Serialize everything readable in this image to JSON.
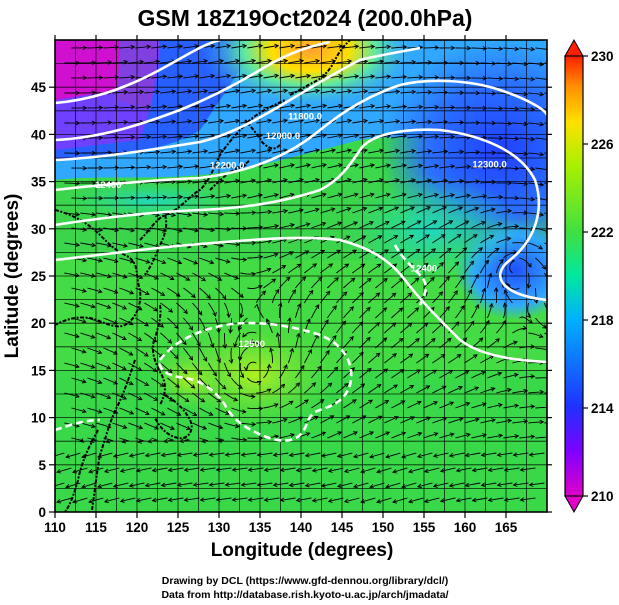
{
  "title": "GSM 18Z19Oct2024 (200.0hPa)",
  "xlabel": "Longitude (degrees)",
  "ylabel": "Latitude  (degrees)",
  "credits": [
    "Drawing by DCL (https://www.gfd-dennou.org/library/dcl/)",
    "Data from http://database.rish.kyoto-u.ac.jp/arch/jmadata/"
  ],
  "map": {
    "lon_range": [
      110,
      170
    ],
    "lat_range": [
      0,
      50
    ],
    "lon_ticks": [
      110,
      115,
      120,
      125,
      130,
      135,
      140,
      145,
      150,
      155,
      160,
      165
    ],
    "lat_ticks": [
      0,
      5,
      10,
      15,
      20,
      25,
      30,
      35,
      40,
      45
    ],
    "grid": true,
    "field": "temperature (shaded)",
    "overlays": [
      "geopotential height contours",
      "wind streamlines",
      "coastlines"
    ]
  },
  "colorbar": {
    "min": 210,
    "max": 230,
    "labels": [
      "210",
      "214",
      "218",
      "222",
      "226",
      "230"
    ],
    "colors": [
      "#e000c8",
      "#8000ff",
      "#2030ff",
      "#00b0ff",
      "#00e8a0",
      "#40e040",
      "#a8f000",
      "#ffe000",
      "#ff9000",
      "#ff2000"
    ]
  },
  "contour_labels": [
    {
      "text": "11800.0",
      "lon": 140.5,
      "lat": 41.6
    },
    {
      "text": "12000.0",
      "lon": 137.8,
      "lat": 39.5
    },
    {
      "text": "12200.0",
      "lon": 131,
      "lat": 36.4
    },
    {
      "text": "12400",
      "lon": 116.5,
      "lat": 34.3
    },
    {
      "text": "12300.0",
      "lon": 163,
      "lat": 36.5
    },
    {
      "text": "12400",
      "lon": 155,
      "lat": 25.5
    },
    {
      "text": "12500",
      "lon": 134,
      "lat": 17.5
    }
  ]
}
